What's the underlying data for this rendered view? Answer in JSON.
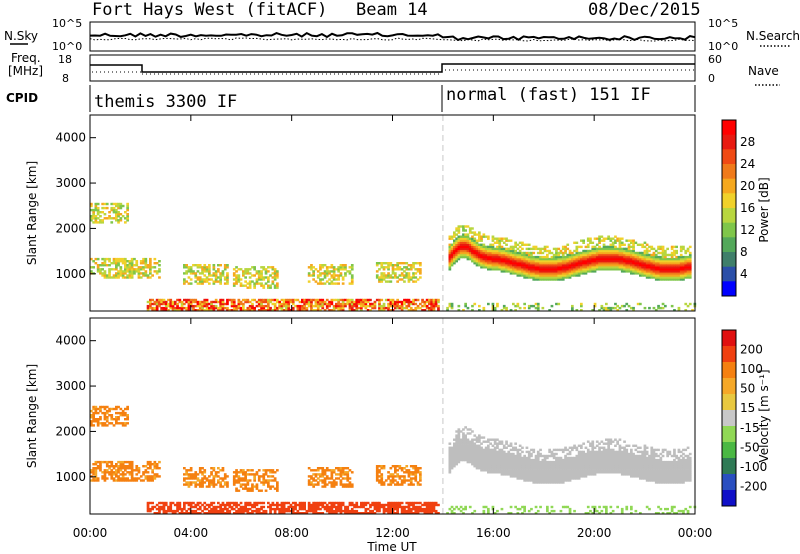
{
  "header": {
    "station": "Fort Hays West (fitACF)",
    "beam": "Beam 14",
    "date": "08/Dec/2015"
  },
  "top_panels": {
    "nsky_label": "N.Sky",
    "nsearch_label": "N.Search",
    "nsky_ticks": [
      "10^5",
      "10^0"
    ],
    "nsky_right_ticks": [
      "10^5",
      "10^0"
    ],
    "freq_label_1": "Freq.",
    "freq_label_2": "[MHz]",
    "freq_ticks": [
      "18",
      "8"
    ],
    "nave_label": "Nave",
    "nave_ticks": [
      "60",
      "0"
    ],
    "cpid_label": "CPID",
    "cpid_segments": [
      {
        "label": "themis 3300 IF",
        "start_hour": 0,
        "end_hour": 14
      },
      {
        "label": "normal (fast) 151 IF",
        "start_hour": 14,
        "end_hour": 24
      }
    ]
  },
  "colors": {
    "power": [
      "#0000ff",
      "#2b4fa8",
      "#3f7f6a",
      "#53a85a",
      "#7fc64a",
      "#b8d63f",
      "#f0d12a",
      "#f5a81e",
      "#f07a1a",
      "#f04a14",
      "#e81a10",
      "#ff0000"
    ],
    "velocity": [
      "#1010c8",
      "#2a4fc0",
      "#2f7a55",
      "#4ab843",
      "#90d855",
      "#c8c8c8",
      "#e8c840",
      "#f5a828",
      "#f58010",
      "#f04010",
      "#e01010"
    ],
    "axis": "#000000",
    "ground_scatter": "#bebebe"
  },
  "chart_data": [
    {
      "type": "heatmap",
      "name": "power-panel",
      "ylabel": "Slant Range [km]",
      "yticks": [
        1000,
        2000,
        3000,
        4000
      ],
      "ylim": [
        180,
        4500
      ],
      "xlim_hours": [
        0,
        24
      ],
      "colorbar_label": "Power [dB]",
      "colorbar_ticks": [
        "4",
        "8",
        "12",
        "16",
        "20",
        "24",
        "28"
      ],
      "colorbar_range": [
        0,
        30
      ]
    },
    {
      "type": "heatmap",
      "name": "velocity-panel",
      "ylabel": "Slant Range [km]",
      "yticks": [
        1000,
        2000,
        3000,
        4000
      ],
      "ylim": [
        180,
        4500
      ],
      "xlim_hours": [
        0,
        24
      ],
      "colorbar_label": "Velocity [m s⁻¹]",
      "colorbar_ticks": [
        "-200",
        "-100",
        "-50",
        "-15",
        "15",
        "50",
        "100",
        "200"
      ],
      "colorbar_range": [
        -250,
        250
      ]
    }
  ],
  "xaxis": {
    "label": "Time UT",
    "ticks": [
      "00:00",
      "04:00",
      "08:00",
      "12:00",
      "16:00",
      "20:00",
      "00:00"
    ]
  }
}
